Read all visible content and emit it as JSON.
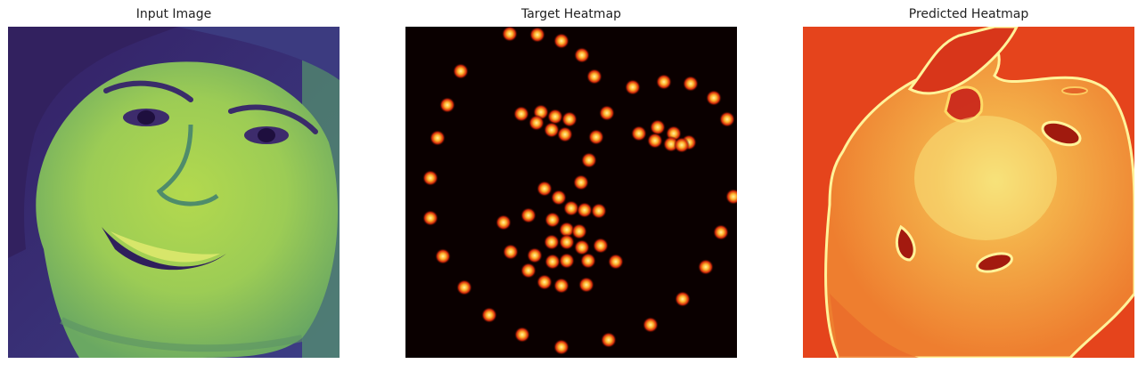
{
  "figure": {
    "panels": [
      {
        "title": "Input Image",
        "image": "grayscale face photo rendered with viridis colormap"
      },
      {
        "title": "Target Heatmap",
        "image": "black background with bright hot-colormap landmark dots"
      },
      {
        "title": "Predicted Heatmap",
        "image": "orange-red face silhouette heatmap with bright outline"
      }
    ],
    "colors": {
      "viridis_dark": "#3b2a6e",
      "viridis_mid": "#5f9d6a",
      "viridis_bright": "#b9dc4f",
      "hot_bg": "#0a0000",
      "hot_dot_outer": "#c81b00",
      "hot_dot_inner": "#ffd24a",
      "pred_bg": "#e5441c",
      "pred_face": "#f29a3a",
      "pred_highlight": "#f7e06a"
    }
  }
}
